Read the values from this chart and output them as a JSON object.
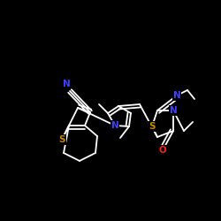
{
  "bg_color": "#000000",
  "bond_color": "#ffffff",
  "atom_colors": {
    "N": "#4040ff",
    "S": "#cc8800",
    "O": "#ff2020",
    "C": "#ffffff"
  },
  "figsize": [
    2.5,
    2.5
  ],
  "dpi": 100
}
